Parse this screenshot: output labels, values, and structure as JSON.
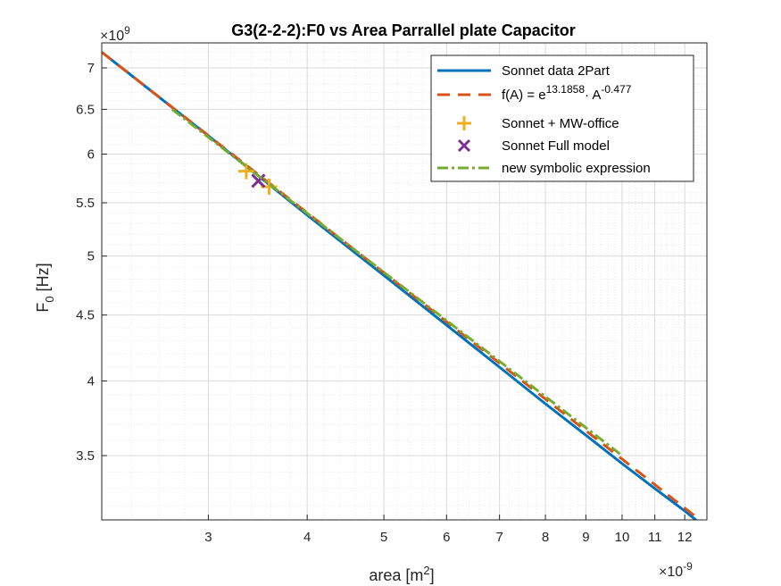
{
  "chart_data": {
    "type": "line",
    "title": "G3(2-2-2):F0 vs Area Parrallel plate Capacitor",
    "xlabel": {
      "base": "area [m",
      "sup": "2",
      "end": "]"
    },
    "ylabel": {
      "base": "F",
      "sub": "0",
      "end": " [Hz]"
    },
    "x_multiplier": "×10",
    "x_multiplier_exp": "-9",
    "y_multiplier": "×10",
    "y_multiplier_exp": "9",
    "x_scale": "log",
    "y_scale": "log",
    "xlim": [
      2.2,
      12.8
    ],
    "ylim": [
      3.12,
      7.32
    ],
    "x_ticks": [
      3,
      4,
      5,
      6,
      7,
      8,
      9,
      10,
      11,
      12
    ],
    "x_tick_labels": [
      "3",
      "4",
      "5",
      "6",
      "7",
      "8",
      "9",
      "10",
      "11",
      "12"
    ],
    "y_ticks": [
      3.5,
      4,
      4.5,
      5,
      5.5,
      6,
      6.5,
      7
    ],
    "y_tick_labels": [
      "3.5",
      "4",
      "4.5",
      "5",
      "5.5",
      "6",
      "6.5",
      "7"
    ],
    "grid": true,
    "legend_position": "top-right",
    "series": [
      {
        "name": "Sonnet data 2Part",
        "kind": "line",
        "color": "#0072BD",
        "x": [
          2.2,
          3,
          4,
          5,
          6,
          7,
          8,
          9,
          10,
          11,
          12,
          12.8
        ],
        "y": [
          7.2,
          6.2,
          5.38,
          4.83,
          4.42,
          4.1,
          3.84,
          3.63,
          3.45,
          3.3,
          3.17,
          3.07
        ]
      },
      {
        "name": "f(A) = e",
        "name_sup": "13.1858",
        "name_mid": "· A",
        "name_sup2": "-0.477",
        "kind": "dashed",
        "color": "#D95319",
        "x": [
          2.2,
          12.8
        ],
        "y": [
          7.2,
          3.09
        ]
      },
      {
        "name": "Sonnet + MW-office",
        "kind": "marker-plus",
        "color": "#EDB120",
        "x": [
          3.35,
          3.58
        ],
        "y": [
          5.82,
          5.66
        ]
      },
      {
        "name": "Sonnet Full model",
        "kind": "marker-x",
        "color": "#7E2F8E",
        "x": [
          3.47
        ],
        "y": [
          5.72
        ]
      },
      {
        "name": "new symbolic expression",
        "kind": "dashdot",
        "color": "#77AC30",
        "x": [
          2.7,
          10
        ],
        "y": [
          6.5,
          3.5
        ]
      }
    ]
  }
}
